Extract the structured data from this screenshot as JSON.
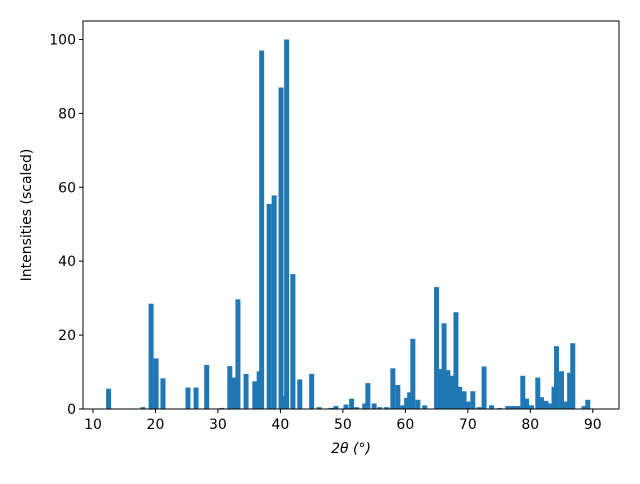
{
  "chart_data": {
    "type": "bar",
    "xlabel": "2θ (°)",
    "ylabel": "Intensities (scaled)",
    "color": "#1f77b4",
    "x": [
      12.5,
      18,
      19.3,
      20.1,
      21.2,
      25.2,
      26.5,
      28.2,
      30.6,
      31.9,
      32.6,
      33.2,
      34.5,
      35.9,
      36.6,
      37.0,
      38.2,
      39.0,
      40.1,
      40.6,
      41.0,
      42.0,
      43.1,
      45.0,
      46.2,
      48.1,
      48.9,
      50.5,
      51.4,
      52.2,
      53.5,
      54.0,
      55.0,
      55.9,
      57.0,
      58.0,
      58.8,
      59.6,
      60.2,
      60.7,
      61.2,
      62.0,
      63.1,
      65.0,
      65.7,
      66.2,
      66.8,
      67.4,
      68.1,
      68.7,
      69.4,
      70.0,
      70.8,
      71.8,
      72.6,
      73.8,
      75.1,
      76.4,
      77.2,
      78.0,
      78.8,
      79.4,
      80.2,
      81.2,
      81.8,
      82.5,
      83.1,
      83.8,
      84.2,
      85.0,
      85.7,
      86.3,
      86.8,
      88.6,
      89.2
    ],
    "values": [
      5.5,
      0.5,
      28.5,
      13.7,
      8.3,
      5.8,
      5.8,
      11.9,
      0.3,
      11.6,
      8.5,
      29.7,
      9.5,
      7.5,
      10.2,
      97,
      55.5,
      57.8,
      87,
      3.5,
      100,
      36.5,
      8,
      9.5,
      0.5,
      0.3,
      0.8,
      1.2,
      2.8,
      0.5,
      1.5,
      7,
      1.5,
      0.5,
      0.5,
      11,
      6.5,
      1,
      3,
      4.5,
      19,
      2.5,
      1,
      33,
      10.8,
      23.2,
      10.5,
      9,
      26.2,
      6,
      4.8,
      2,
      4.8,
      0.5,
      11.5,
      1,
      0.3,
      0.8,
      0.8,
      0.8,
      9,
      2.8,
      1,
      8.5,
      3.2,
      2.2,
      1.5,
      6,
      17,
      10.2,
      2,
      9.8,
      17.8,
      0.8,
      2.5
    ],
    "xlim": [
      8.4,
      94.2
    ],
    "ylim": [
      0,
      105
    ],
    "xticks": [
      10,
      20,
      30,
      40,
      50,
      60,
      70,
      80,
      90
    ],
    "yticks": [
      0,
      20,
      40,
      60,
      80,
      100
    ]
  }
}
